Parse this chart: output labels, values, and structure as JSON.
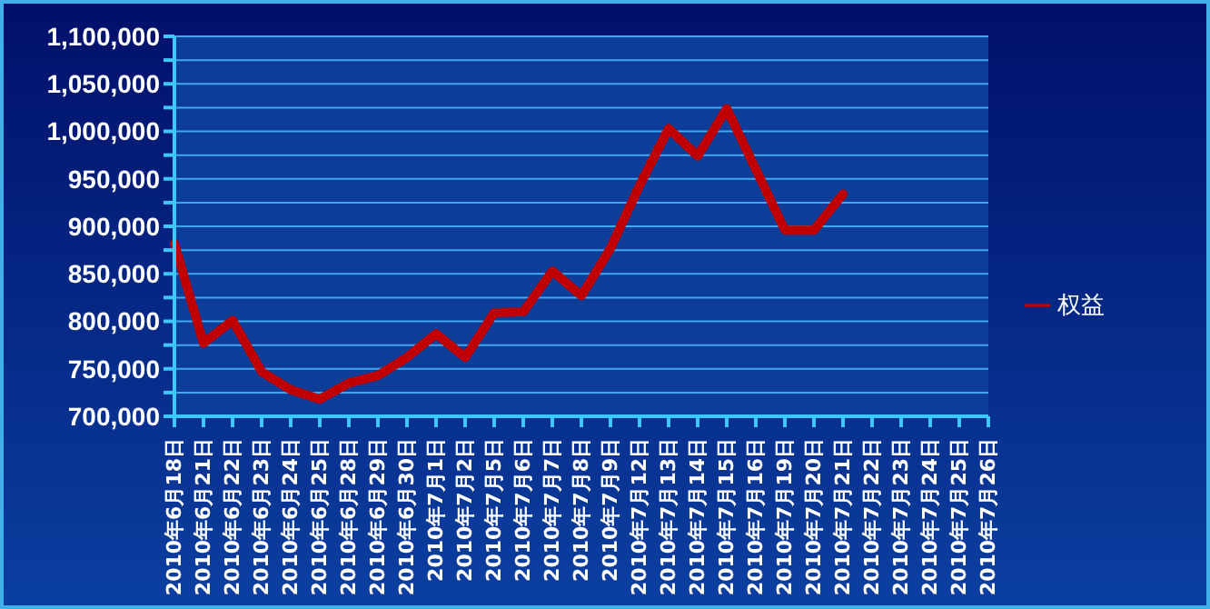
{
  "chart_data": {
    "type": "line",
    "categories": [
      "2010年6月18日",
      "2010年6月21日",
      "2010年6月22日",
      "2010年6月23日",
      "2010年6月24日",
      "2010年6月25日",
      "2010年6月28日",
      "2010年6月29日",
      "2010年6月30日",
      "2010年7月1日",
      "2010年7月2日",
      "2010年7月5日",
      "2010年7月6日",
      "2010年7月7日",
      "2010年7月8日",
      "2010年7月9日",
      "2010年7月12日",
      "2010年7月13日",
      "2010年7月14日",
      "2010年7月15日",
      "2010年7月16日",
      "2010年7月19日",
      "2010年7月20日",
      "2010年7月21日",
      "2010年7月22日",
      "2010年7月23日",
      "2010年7月24日",
      "2010年7月25日",
      "2010年7月26日"
    ],
    "series": [
      {
        "name": "权益",
        "color": "#c00000",
        "values": [
          882000,
          777000,
          801000,
          747000,
          728000,
          718000,
          735000,
          743000,
          762000,
          787000,
          762000,
          809000,
          810000,
          853000,
          827000,
          877000,
          943000,
          1003000,
          974000,
          1024000,
          960000,
          896000,
          896000,
          934000,
          null,
          null,
          null,
          null,
          null
        ]
      }
    ],
    "ylim": [
      700000,
      1100000
    ],
    "yticks": [
      {
        "value": 700000,
        "label": "700,000"
      },
      {
        "value": 725000,
        "label": null
      },
      {
        "value": 750000,
        "label": "750,000"
      },
      {
        "value": 775000,
        "label": null
      },
      {
        "value": 800000,
        "label": "800,000"
      },
      {
        "value": 825000,
        "label": null
      },
      {
        "value": 850000,
        "label": "850,000"
      },
      {
        "value": 875000,
        "label": null
      },
      {
        "value": 900000,
        "label": "900,000"
      },
      {
        "value": 925000,
        "label": null
      },
      {
        "value": 950000,
        "label": "950,000"
      },
      {
        "value": 975000,
        "label": null
      },
      {
        "value": 1000000,
        "label": "1,000,000"
      },
      {
        "value": 1025000,
        "label": null
      },
      {
        "value": 1050000,
        "label": "1,050,000"
      },
      {
        "value": 1075000,
        "label": null
      },
      {
        "value": 1100000,
        "label": "1,100,000"
      }
    ],
    "grid": "y",
    "legend": "right",
    "marker": "none",
    "line_style": "solid"
  }
}
